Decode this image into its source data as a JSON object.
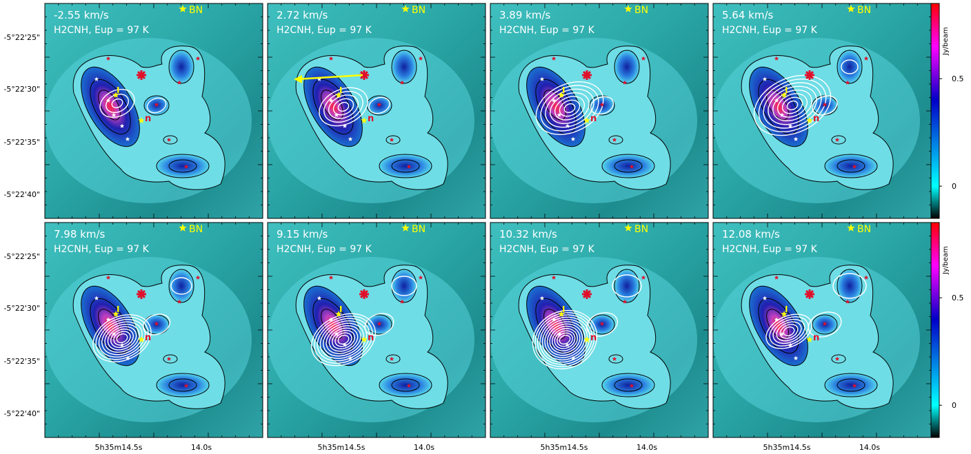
{
  "figure": {
    "ra_ticks": [
      "5h35m14.5s",
      "14.0s"
    ],
    "dec_ticks": [
      "-5°22'25\"",
      "-5°22'30\"",
      "-5°22'35\"",
      "-5°22'40\""
    ],
    "colorbar": {
      "label": "Jy/beam",
      "ticks": [
        "0",
        "0.5"
      ],
      "range": [
        -0.15,
        0.85
      ],
      "tick_values": [
        0,
        0.5
      ],
      "colormap": [
        "#000000",
        "#00ffff",
        "#0000c8",
        "#ff00ff",
        "#ff0000"
      ]
    },
    "source_labels": {
      "bn": "BN",
      "i": "I",
      "n": "n"
    }
  },
  "chart_data": [
    {
      "type": "heatmap",
      "velocity": "-2.55 km/s",
      "line": "H2CNH, Eup = 97 K"
    },
    {
      "type": "heatmap",
      "velocity": "2.72 km/s",
      "line": "H2CNH, Eup = 97 K"
    },
    {
      "type": "heatmap",
      "velocity": "3.89 km/s",
      "line": "H2CNH, Eup = 97 K"
    },
    {
      "type": "heatmap",
      "velocity": "5.64 km/s",
      "line": "H2CNH, Eup = 97 K"
    },
    {
      "type": "heatmap",
      "velocity": "7.98 km/s",
      "line": "H2CNH, Eup = 97 K"
    },
    {
      "type": "heatmap",
      "velocity": "9.15 km/s",
      "line": "H2CNH, Eup = 97 K"
    },
    {
      "type": "heatmap",
      "velocity": "10.32 km/s",
      "line": "H2CNH, Eup = 97 K"
    },
    {
      "type": "heatmap",
      "velocity": "12.08 km/s",
      "line": "H2CNH, Eup = 97 K"
    }
  ]
}
